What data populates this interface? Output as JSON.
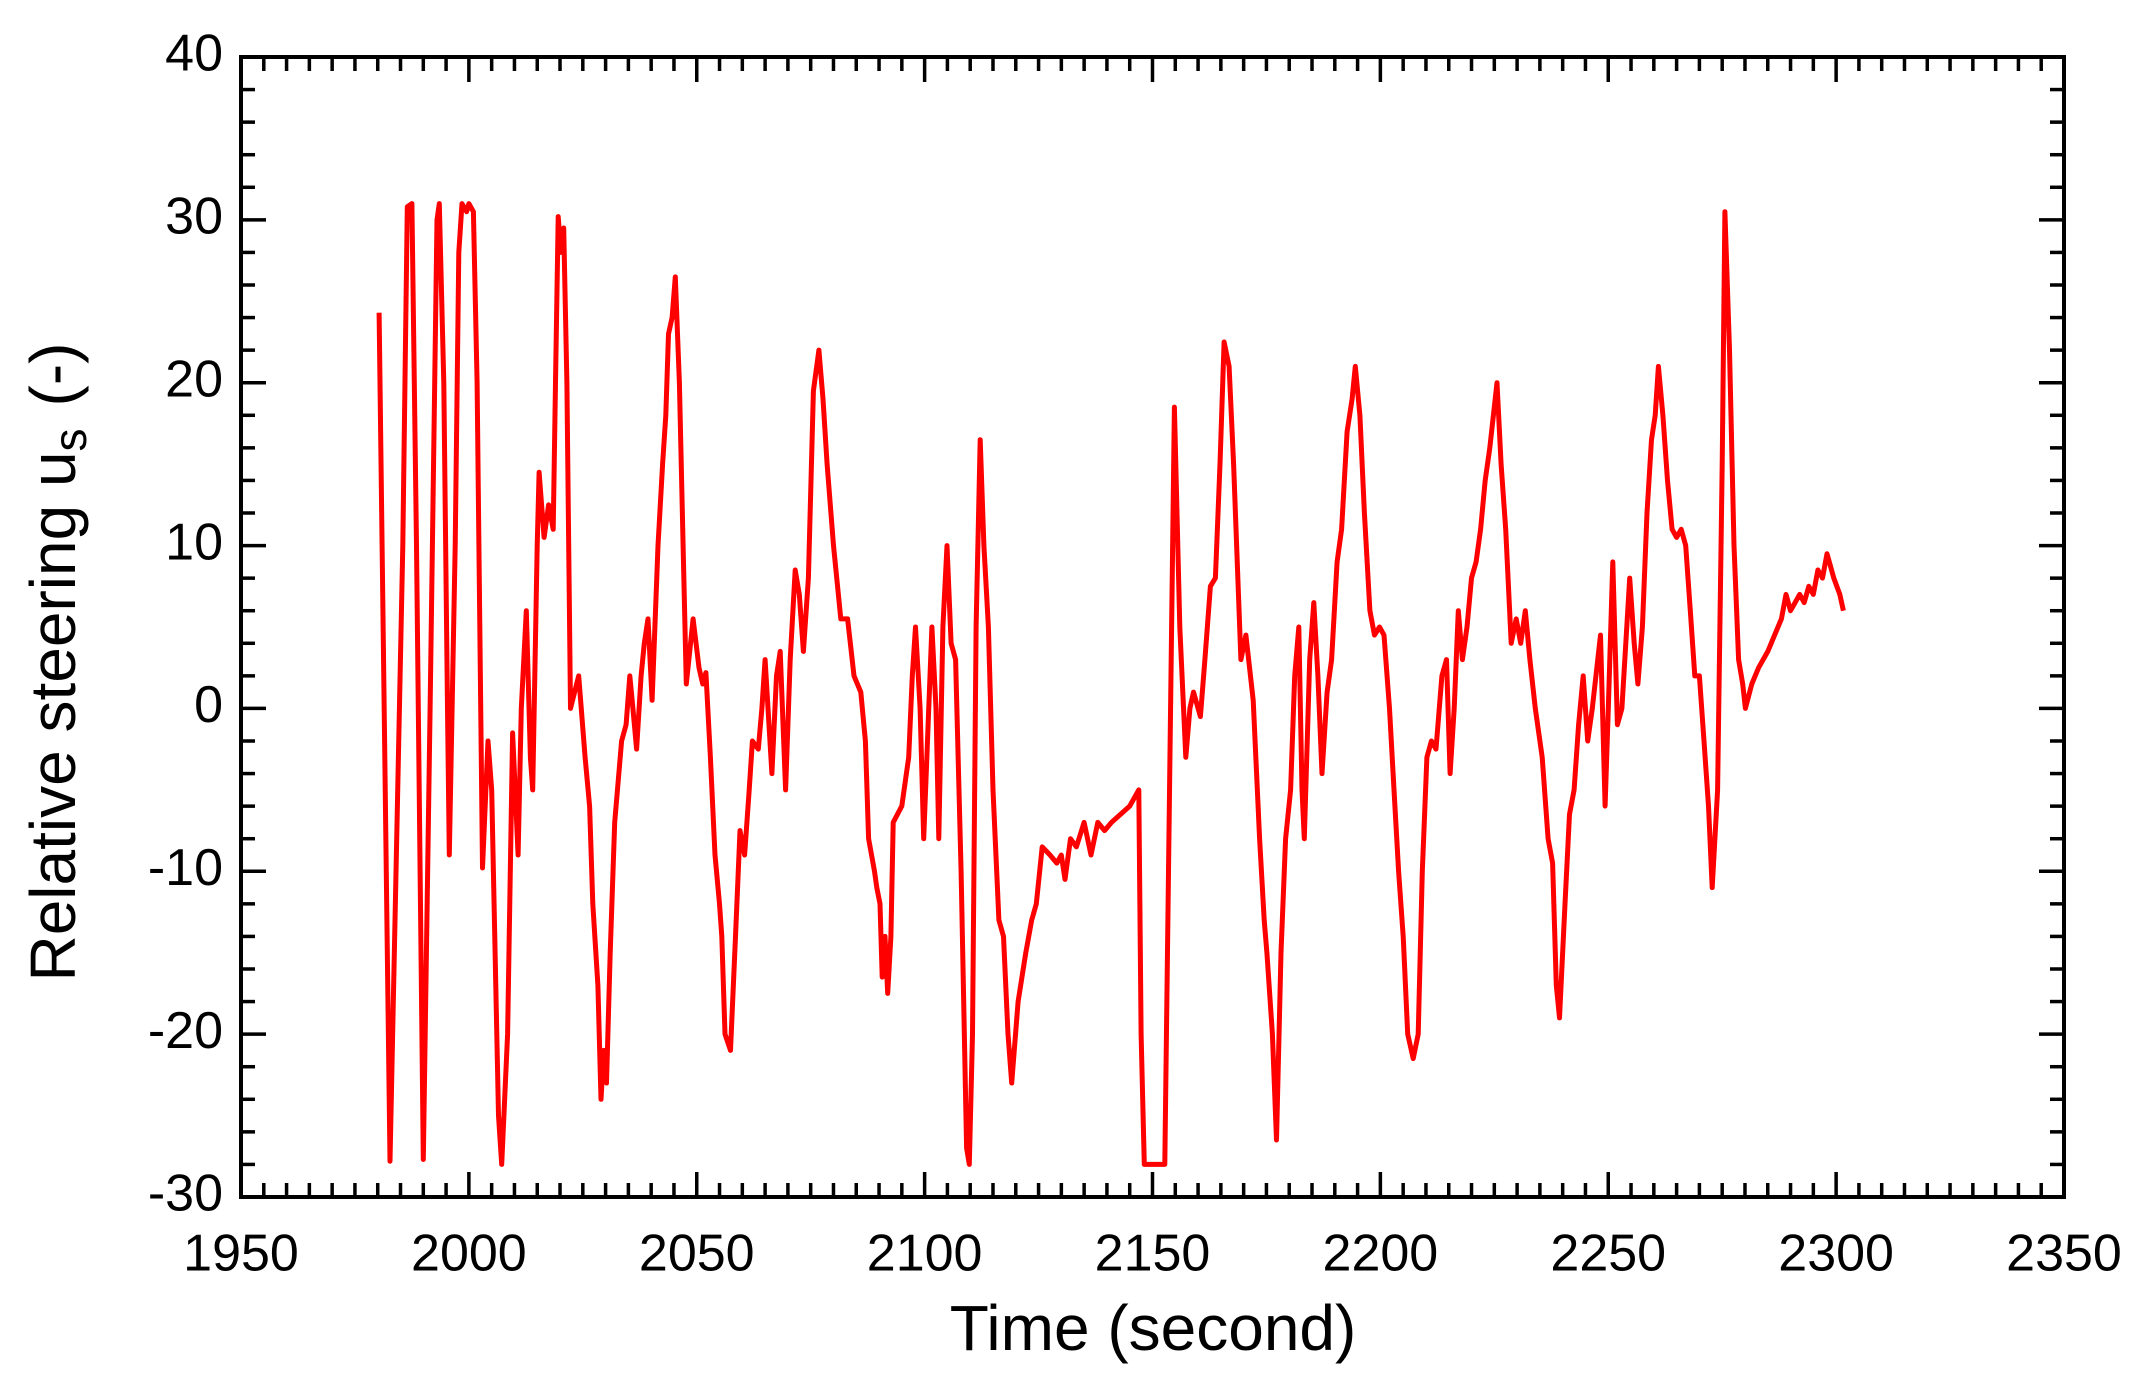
{
  "chart_data": {
    "type": "line",
    "xlabel": "Time (second)",
    "ylabel": [
      "Relative steering u",
      "s",
      "(-)"
    ],
    "color": "#ff0000",
    "xlim": [
      1950,
      2350
    ],
    "xticks": [
      1950,
      2000,
      2050,
      2100,
      2150,
      2200,
      2250,
      2300,
      2350
    ],
    "ylim": [
      -30,
      40
    ],
    "yticks": [
      -30,
      -20,
      -10,
      0,
      10,
      20,
      30,
      40
    ],
    "grid": false,
    "x": [
      1980.3,
      1982.7,
      1985.5,
      1986.5,
      1987.5,
      1988.5,
      1990,
      1991.5,
      1993,
      1993.5,
      1994.5,
      1995.3,
      1995.7,
      1997,
      1997.8,
      1998.5,
      1999.5,
      2000,
      2001,
      2001.8,
      2003,
      2004.2,
      2005,
      2006.5,
      2007.2,
      2008.5,
      2009.6,
      2010.8,
      2011.5,
      2012.6,
      2013.5,
      2014,
      2015,
      2015.4,
      2016.5,
      2017.5,
      2018.5,
      2019,
      2019.6,
      2020.2,
      2020.8,
      2021.5,
      2022.3,
      2024.1,
      2025.5,
      2026.5,
      2027.2,
      2028.3,
      2029,
      2029.6,
      2030.2,
      2031,
      2032,
      2033.5,
      2034.5,
      2035.3,
      2036,
      2036.8,
      2037.8,
      2038.5,
      2039.3,
      2040.2,
      2041.5,
      2042.5,
      2043.2,
      2043.8,
      2044.6,
      2045.3,
      2046.2,
      2047,
      2047.7,
      2049.2,
      2050.5,
      2051.3,
      2052,
      2053,
      2054,
      2055,
      2055.5,
      2056.2,
      2057.4,
      2058.5,
      2059.5,
      2060.5,
      2061.5,
      2062.2,
      2063.5,
      2064.3,
      2065,
      2066.5,
      2067.5,
      2068.3,
      2069.5,
      2070.5,
      2071.6,
      2072.5,
      2073.4,
      2074.5,
      2075.6,
      2076.8,
      2077.7,
      2078.6,
      2080,
      2081.6,
      2083.1,
      2084.5,
      2086,
      2087,
      2087.7,
      2089,
      2089.5,
      2090.2,
      2090.7,
      2091.3,
      2091.9,
      2092.6,
      2093.1,
      2095,
      2096.5,
      2097.3,
      2098,
      2099,
      2099.8,
      2101.6,
      2102.5,
      2103.1,
      2104,
      2104.9,
      2105.8,
      2106.8,
      2108,
      2109.2,
      2109.8,
      2110.5,
      2111.3,
      2112.2,
      2113,
      2114,
      2115,
      2116.3,
      2117.3,
      2118.3,
      2119.1,
      2120.5,
      2122.2,
      2123.5,
      2124.5,
      2125.8,
      2127.5,
      2129,
      2130,
      2130.8,
      2132,
      2133.3,
      2135,
      2136.5,
      2138,
      2139.5,
      2141,
      2143,
      2145,
      2147,
      2147.5,
      2148.2,
      2152.7,
      2153.5,
      2154.8,
      2156,
      2157.3,
      2158.2,
      2159,
      2160.5,
      2161.5,
      2162.7,
      2163.8,
      2164.8,
      2165.7,
      2166.8,
      2167.8,
      2169.4,
      2170.5,
      2172.1,
      2173.5,
      2174.5,
      2175.1,
      2176.3,
      2177.2,
      2178.2,
      2179.2,
      2180.3,
      2181.2,
      2182.1,
      2182.8,
      2183.3,
      2184.5,
      2185.4,
      2186.3,
      2187.2,
      2188.3,
      2189.3,
      2190.5,
      2191.5,
      2192.7,
      2193.8,
      2194.5,
      2195.5,
      2196.5,
      2197.7,
      2198.7,
      2199.8,
      2200.8,
      2202,
      2203,
      2204,
      2205,
      2206,
      2207.2,
      2208.3,
      2209.2,
      2210.2,
      2211.2,
      2212.2,
      2213.5,
      2214.5,
      2215.3,
      2216.2,
      2217.1,
      2218,
      2219,
      2220,
      2221,
      2222,
      2223,
      2224,
      2225.6,
      2226.5,
      2227.5,
      2228.7,
      2229.8,
      2230.8,
      2231.8,
      2232.8,
      2234,
      2235.5,
      2236.8,
      2237.8,
      2238.6,
      2239.3,
      2240.5,
      2241.5,
      2242.5,
      2243.5,
      2244.5,
      2245.5,
      2246.5,
      2248.3,
      2249.3,
      2250,
      2251,
      2252,
      2253,
      2254.7,
      2255.7,
      2256.5,
      2257.5,
      2258.5,
      2259.5,
      2260.3,
      2261,
      2262,
      2263,
      2264,
      2265,
      2266,
      2267,
      2268,
      2269,
      2270,
      2271,
      2272,
      2272.8,
      2274,
      2275,
      2275.6,
      2276.6,
      2277.6,
      2278.6,
      2279.5,
      2280.1,
      2281.5,
      2283,
      2285,
      2286.5,
      2288,
      2289,
      2290,
      2291,
      2292,
      2293,
      2294,
      2295,
      2296,
      2297,
      2298,
      2299.5,
      2300.8,
      2301.6
    ],
    "values": [
      24.3,
      -27.8,
      10,
      30.8,
      31,
      10,
      -27.7,
      0,
      30,
      31,
      20,
      0,
      -9,
      10,
      28,
      31,
      30.5,
      31,
      30.5,
      20,
      -9.8,
      -2,
      -5,
      -25,
      -28,
      -20,
      -1.5,
      -9,
      0,
      6,
      -3,
      -5,
      10,
      14.5,
      10.5,
      12.5,
      11,
      20,
      30.2,
      28,
      29.5,
      20,
      0,
      2,
      -3,
      -6,
      -12,
      -17,
      -24,
      -21,
      -23,
      -15,
      -7,
      -2,
      -1,
      2,
      0,
      -2.5,
      2,
      4,
      5.5,
      0.5,
      10,
      15,
      18,
      23,
      24,
      26.5,
      20,
      10,
      1.5,
      5.5,
      2.5,
      1.5,
      2.2,
      -3,
      -9,
      -12,
      -14,
      -20,
      -21,
      -14,
      -7.5,
      -9,
      -5,
      -2,
      -2.5,
      0,
      3,
      -4,
      2,
      3.5,
      -5,
      3,
      8.5,
      7,
      3.5,
      8,
      19.5,
      22,
      19,
      15,
      10,
      5.5,
      5.5,
      2,
      1,
      -2,
      -8,
      -10,
      -11,
      -12,
      -16.5,
      -14,
      -17.5,
      -14,
      -7,
      -6,
      -3,
      2,
      5,
      0,
      -8,
      5,
      0,
      -8,
      5,
      10,
      4,
      3,
      -10,
      -27,
      -28,
      -20,
      5,
      16.5,
      10,
      5,
      -5,
      -13,
      -14,
      -20,
      -23,
      -18,
      -15,
      -13,
      -12,
      -8.5,
      -9,
      -9.5,
      -9,
      -10.5,
      -8,
      -8.5,
      -7,
      -9,
      -7,
      -7.5,
      -7,
      -6.5,
      -6,
      -5,
      -20,
      -28,
      -28,
      -10,
      18.5,
      5,
      -3,
      0,
      1,
      -0.5,
      3,
      7.5,
      8,
      15,
      22.5,
      21,
      15,
      3,
      4.5,
      0.5,
      -8,
      -13,
      -15,
      -20,
      -26.5,
      -15,
      -8,
      -5,
      2,
      5,
      -5,
      -8,
      3,
      6.5,
      2,
      -4,
      1,
      3,
      9,
      11,
      17,
      19,
      21,
      18,
      12,
      6,
      4.5,
      5,
      4.5,
      0,
      -5,
      -10,
      -14,
      -20,
      -21.5,
      -20,
      -10,
      -3,
      -2,
      -2.5,
      2,
      3,
      -4,
      0,
      6,
      3,
      5,
      8,
      9,
      11,
      14,
      16,
      20,
      15,
      11,
      4,
      5.5,
      4,
      6,
      3,
      0,
      -3,
      -8,
      -9.5,
      -17,
      -19,
      -12,
      -6.5,
      -5,
      -1,
      2,
      -2,
      0,
      4.5,
      -6,
      0,
      9,
      -1,
      0,
      8,
      4,
      1.5,
      5,
      12,
      16.5,
      18,
      21,
      18,
      14,
      11,
      10.5,
      11,
      10,
      6,
      2,
      2,
      -2,
      -6,
      -11,
      -5,
      15,
      30.5,
      22,
      10,
      3,
      1.5,
      0,
      1.5,
      2.5,
      3.5,
      4.5,
      5.5,
      7,
      6,
      6.5,
      7,
      6.5,
      7.5,
      7,
      8.5,
      8,
      9.5,
      8,
      7,
      6
    ]
  }
}
